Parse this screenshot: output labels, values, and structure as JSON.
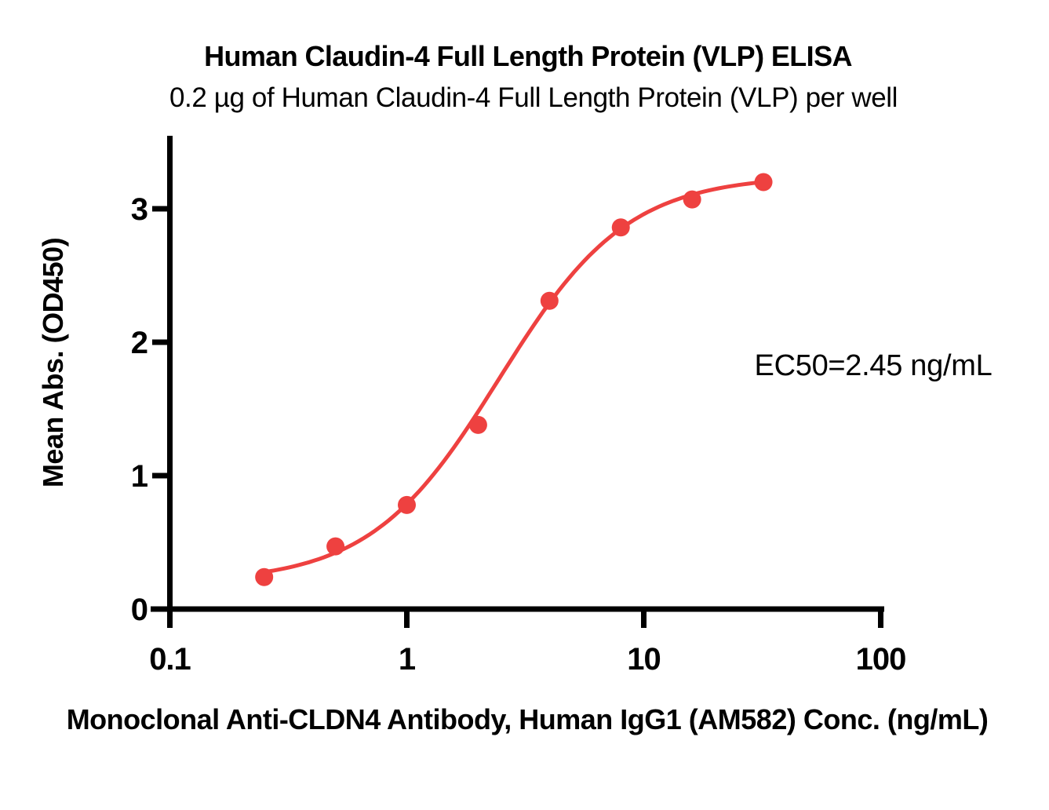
{
  "page": {
    "background": "#ffffff",
    "text_color": "#000000",
    "axis_color": "#000000"
  },
  "chart_data": {
    "type": "scatter",
    "title": "Human Claudin-4 Full Length Protein (VLP) ELISA",
    "subtitle": "0.2 µg of Human Claudin-4 Full Length Protein (VLP) per well",
    "xlabel": "Monoclonal Anti-CLDN4 Antibody, Human IgG1 (AM582) Conc. (ng/mL)",
    "ylabel": "Mean Abs. (OD450)",
    "annotation": "EC50=2.45 ng/mL",
    "x_scale": "log10",
    "xlim": [
      0.1,
      100
    ],
    "ylim": [
      0,
      3.55
    ],
    "x_ticks": [
      0.1,
      1,
      10,
      100
    ],
    "x_tick_labels": [
      "0.1",
      "1",
      "10",
      "100"
    ],
    "y_ticks": [
      0,
      1,
      2,
      3
    ],
    "y_tick_labels": [
      "0",
      "1",
      "2",
      "3"
    ],
    "grid": false,
    "legend": "none",
    "ec50_ng_ml": 2.45,
    "series": [
      {
        "name": "Monoclonal Anti-CLDN4 Antibody, Human IgG1 (AM582)",
        "color": "#EE4140",
        "marker": "circle",
        "points": [
          {
            "x": 0.25,
            "y": 0.24
          },
          {
            "x": 0.5,
            "y": 0.47
          },
          {
            "x": 1,
            "y": 0.78
          },
          {
            "x": 2,
            "y": 1.38
          },
          {
            "x": 4,
            "y": 2.31
          },
          {
            "x": 8,
            "y": 2.86
          },
          {
            "x": 16,
            "y": 3.07
          },
          {
            "x": 32,
            "y": 3.2
          }
        ],
        "fit": {
          "model": "4PL",
          "bottom": 0.2,
          "top": 3.25,
          "ec50": 2.45,
          "hill": 1.6
        }
      }
    ]
  }
}
